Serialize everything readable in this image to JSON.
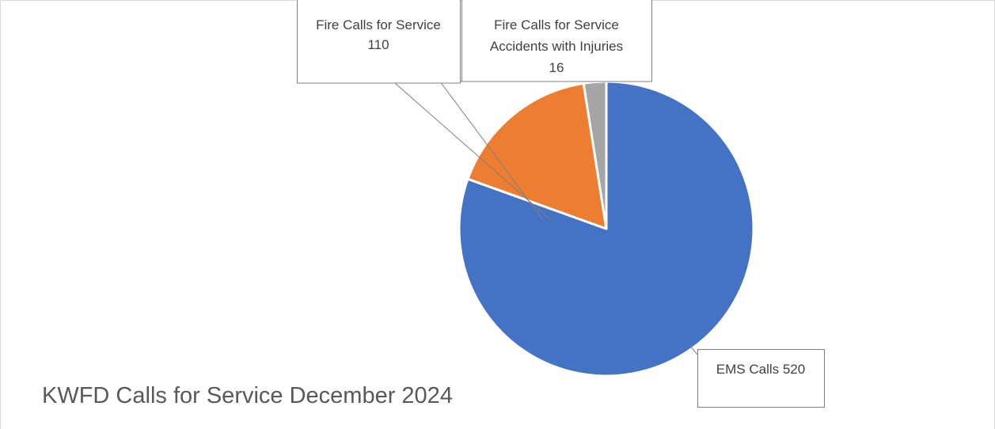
{
  "chart_data": {
    "type": "pie",
    "title": "KWFD Calls for Service December 2024",
    "start_angle_deg": 0,
    "direction": "clockwise",
    "slices": [
      {
        "label": "EMS Calls",
        "value": 520,
        "label_text": "EMS Calls 520",
        "color": "#4472C4"
      },
      {
        "label": "Fire Calls for Service",
        "value": 110,
        "label_text": "Fire Calls for Service 110",
        "color": "#ED7D31"
      },
      {
        "label": "Fire Calls for Service Accidents with Injuries",
        "value": 16,
        "label_text": "Fire Calls for Service Accidents with Injuries 16",
        "color": "#A5A5A5"
      }
    ]
  }
}
